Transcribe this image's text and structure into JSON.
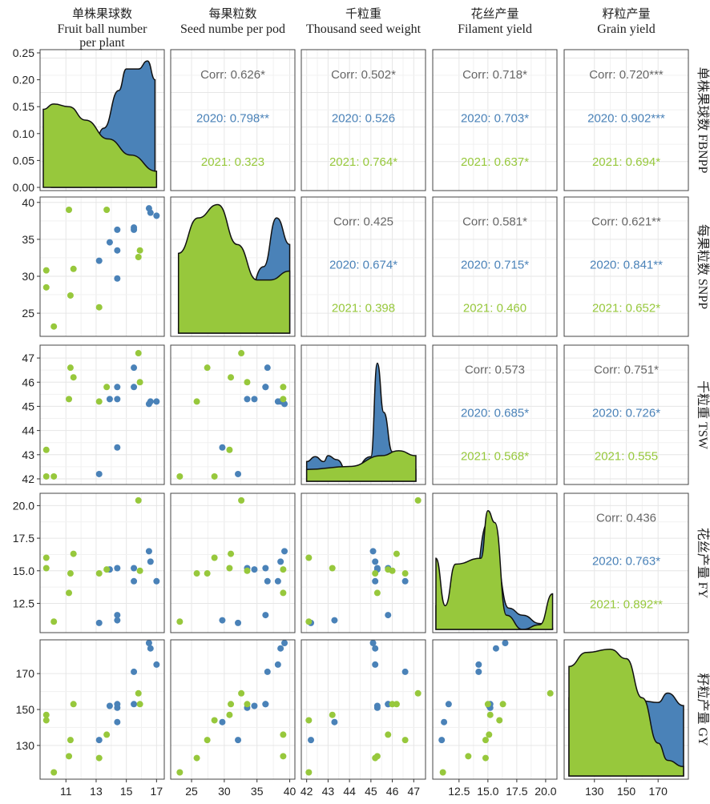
{
  "chart_data": {
    "type": "scatter",
    "variables": [
      {
        "key": "FBNPP",
        "top_cn": "单株果球数",
        "top_en": [
          "Fruit ball number",
          "per plant"
        ],
        "right_label": "单株果球数 FBNPP",
        "ticks": [
          11,
          13,
          15,
          17
        ],
        "tick_labels": [
          "11",
          "13",
          "15",
          "17"
        ],
        "range": [
          9.5,
          17.3
        ]
      },
      {
        "key": "SNPP",
        "top_cn": "每果粒数",
        "top_en": [
          "Seed numbe per pod"
        ],
        "right_label": "每果粒数 SNPP",
        "ticks": [
          25,
          30,
          35,
          40
        ],
        "tick_labels": [
          "25",
          "30",
          "35",
          "40"
        ],
        "range": [
          22.3,
          40.3
        ]
      },
      {
        "key": "TSW",
        "top_cn": "千粒重",
        "top_en": [
          "Thousand seed weight"
        ],
        "right_label": "千粒重 TSW",
        "ticks": [
          42,
          43,
          44,
          45,
          46,
          47
        ],
        "tick_labels": [
          "42",
          "43",
          "44",
          "45",
          "46",
          "47"
        ],
        "range": [
          41.9,
          47.4
        ]
      },
      {
        "key": "FY",
        "top_cn": "花丝产量",
        "top_en": [
          "Filament yield"
        ],
        "right_label": "花丝产量 FY",
        "ticks": [
          12.5,
          15,
          17.5,
          20
        ],
        "tick_labels": [
          "12.5",
          "15.0",
          "17.5",
          "20.0"
        ],
        "range": [
          10.5,
          20.7
        ]
      },
      {
        "key": "GY",
        "top_cn": "籽粒产量",
        "top_en": [
          "Grain yield"
        ],
        "right_label": "籽粒产量 GY",
        "ticks": [
          130,
          150,
          170
        ],
        "tick_labels": [
          "130",
          "150",
          "170"
        ],
        "range": [
          113,
          187
        ]
      }
    ],
    "diag_y_ticks": [
      0.0,
      0.05,
      0.1,
      0.15,
      0.2,
      0.25
    ],
    "diag_y_tick_labels": [
      "0.00",
      "0.05",
      "0.10",
      "0.15",
      "0.20",
      "0.25"
    ],
    "diag_y_range": [
      0,
      0.25
    ],
    "series": [
      {
        "name": "2020",
        "color": "#4a82b8",
        "points": [
          [
            17.0,
            38.2,
            45.2,
            14.2,
            175.0
          ],
          [
            16.5,
            39.2,
            45.1,
            16.5,
            187.0
          ],
          [
            16.6,
            38.6,
            45.2,
            15.7,
            184.0
          ],
          [
            15.5,
            36.3,
            45.8,
            15.2,
            153.0
          ],
          [
            15.5,
            36.6,
            46.6,
            14.2,
            171.0
          ],
          [
            14.4,
            36.3,
            45.8,
            11.6,
            153.0
          ],
          [
            14.4,
            29.7,
            43.3,
            11.2,
            143.0
          ],
          [
            13.2,
            32.1,
            42.2,
            11.0,
            133.0
          ],
          [
            13.9,
            34.6,
            45.3,
            15.1,
            152.0
          ],
          [
            14.4,
            33.5,
            45.3,
            15.2,
            151.0
          ]
        ],
        "density": {
          "FBNPP": [
            [
              10,
              0.0
            ],
            [
              12.5,
              0.03
            ],
            [
              13.5,
              0.11
            ],
            [
              14.5,
              0.18
            ],
            [
              15.0,
              0.22
            ],
            [
              15.8,
              0.22
            ],
            [
              16.4,
              0.235
            ],
            [
              16.9,
              0.2
            ]
          ],
          "SNPP": [
            [
              23,
              0.01
            ],
            [
              30,
              0.02
            ],
            [
              33,
              0.05
            ],
            [
              36,
              0.15
            ],
            [
              38,
              0.26
            ],
            [
              40,
              0.2
            ]
          ],
          "TSW": [
            [
              42.0,
              0.2
            ],
            [
              42.4,
              0.25
            ],
            [
              42.8,
              0.2
            ],
            [
              43.0,
              0.26
            ],
            [
              43.4,
              0.22
            ],
            [
              44,
              0.05
            ],
            [
              45.0,
              0.25
            ],
            [
              45.3,
              1.2
            ],
            [
              45.6,
              0.7
            ],
            [
              46.0,
              0.3
            ],
            [
              47.1,
              0.12
            ]
          ],
          "FY": [
            [
              10.5,
              0.2
            ],
            [
              11.3,
              0.2
            ],
            [
              12.0,
              0.26
            ],
            [
              13.5,
              0.22
            ],
            [
              15.0,
              0.9
            ],
            [
              15.6,
              0.6
            ],
            [
              16.8,
              0.18
            ],
            [
              18,
              0.12
            ],
            [
              19.5,
              0.05
            ],
            [
              20.6,
              0.01
            ]
          ],
          "GY": [
            [
              114,
              0.5
            ],
            [
              125,
              0.68
            ],
            [
              140,
              0.7
            ],
            [
              150,
              0.65
            ],
            [
              160,
              0.48
            ],
            [
              170,
              0.47
            ],
            [
              176,
              0.53
            ],
            [
              186,
              0.45
            ]
          ]
        }
      },
      {
        "name": "2021",
        "color": "#97c83c",
        "points": [
          [
            9.7,
            30.8,
            43.2,
            15.2,
            147.0
          ],
          [
            9.7,
            28.5,
            42.1,
            16.0,
            144.0
          ],
          [
            10.2,
            23.2,
            42.1,
            11.1,
            115.0
          ],
          [
            11.2,
            39.0,
            45.3,
            13.3,
            124.0
          ],
          [
            11.3,
            27.4,
            46.6,
            14.8,
            133.0
          ],
          [
            11.5,
            31.0,
            46.2,
            16.3,
            153.0
          ],
          [
            13.2,
            25.8,
            45.2,
            14.8,
            123.0
          ],
          [
            13.7,
            39.0,
            45.8,
            15.1,
            136.0
          ],
          [
            15.8,
            32.6,
            47.2,
            20.4,
            159.0
          ],
          [
            15.9,
            33.5,
            46.0,
            15.0,
            153.0
          ]
        ],
        "density": {
          "FBNPP": [
            [
              9.5,
              0.145
            ],
            [
              10.2,
              0.155
            ],
            [
              11.2,
              0.15
            ],
            [
              12.3,
              0.125
            ],
            [
              13.8,
              0.09
            ],
            [
              15.3,
              0.06
            ],
            [
              17.0,
              0.03
            ]
          ],
          "SNPP": [
            [
              23,
              0.18
            ],
            [
              26,
              0.26
            ],
            [
              29,
              0.29
            ],
            [
              32,
              0.2
            ],
            [
              35,
              0.12
            ],
            [
              37,
              0.12
            ],
            [
              40,
              0.14
            ]
          ],
          "TSW": [
            [
              42,
              0.12
            ],
            [
              44,
              0.15
            ],
            [
              45.5,
              0.26
            ],
            [
              46.3,
              0.31
            ],
            [
              47.1,
              0.26
            ]
          ],
          "FY": [
            [
              10.5,
              0.6
            ],
            [
              11.3,
              0.2
            ],
            [
              12.2,
              0.55
            ],
            [
              14.4,
              0.6
            ],
            [
              15.0,
              1.0
            ],
            [
              15.6,
              0.9
            ],
            [
              16.6,
              0.12
            ],
            [
              18,
              0.0
            ],
            [
              19.5,
              0.04
            ],
            [
              20.6,
              0.3
            ]
          ],
          "GY": [
            [
              114,
              0.7
            ],
            [
              125,
              0.79
            ],
            [
              140,
              0.81
            ],
            [
              150,
              0.75
            ],
            [
              160,
              0.5
            ],
            [
              170,
              0.21
            ],
            [
              176,
              0.1
            ],
            [
              186,
              0.06
            ]
          ]
        }
      }
    ],
    "correlations": [
      [
        null,
        [
          "Corr: 0.626*",
          "2020: 0.798**",
          "2021: 0.323"
        ],
        [
          "Corr: 0.502*",
          "2020: 0.526",
          "2021: 0.764*"
        ],
        [
          "Corr: 0.718*",
          "2020: 0.703*",
          "2021: 0.637*"
        ],
        [
          "Corr: 0.720***",
          "2020: 0.902***",
          "2021: 0.694*"
        ]
      ],
      [
        null,
        null,
        [
          "Corr: 0.425",
          "2020: 0.674*",
          "2021: 0.398"
        ],
        [
          "Corr: 0.581*",
          "2020: 0.715*",
          "2021: 0.460"
        ],
        [
          "Corr: 0.621**",
          "2020: 0.841**",
          "2021: 0.652*"
        ]
      ],
      [
        null,
        null,
        null,
        [
          "Corr: 0.573",
          "2020: 0.685*",
          "2021: 0.568*"
        ],
        [
          "Corr: 0.751*",
          "2020: 0.726*",
          "2021: 0.555"
        ]
      ],
      [
        null,
        null,
        null,
        null,
        [
          "Corr: 0.436",
          "2020: 0.763*",
          "2021: 0.892**"
        ]
      ]
    ],
    "corr_color": "#666666",
    "grid": true
  }
}
